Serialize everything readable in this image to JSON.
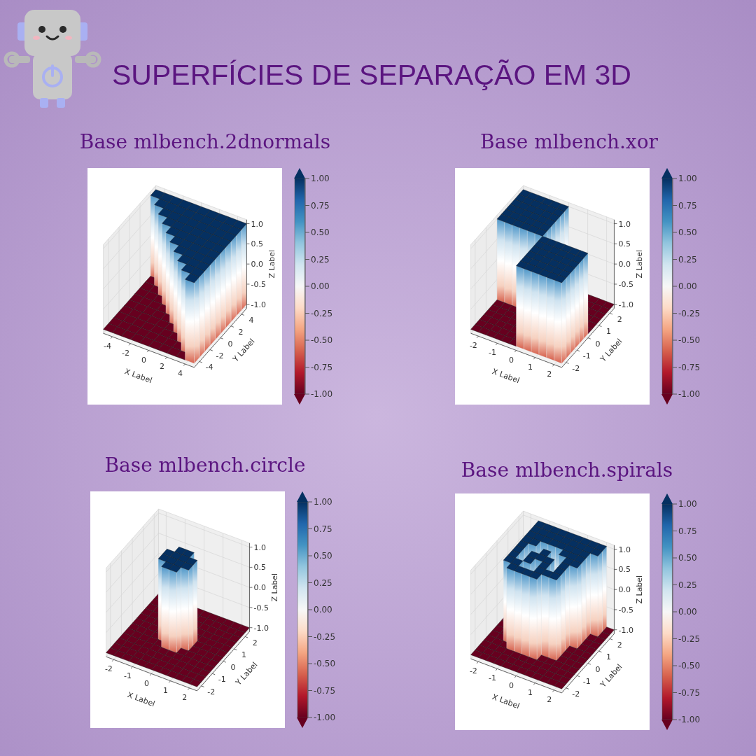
{
  "title": "SUPERFÍCIES DE SEPARAÇÃO EM 3D",
  "chart_data": [
    {
      "type": "surface",
      "title": "Base mlbench.2dnormals",
      "x_label": "X Label",
      "y_label": "Y Label",
      "z_label": "Z Label",
      "grid": true,
      "x": [
        -4.5,
        -3.5,
        -2.5,
        -1.5,
        -0.5,
        0.5,
        1.5,
        2.5,
        3.5,
        4.5
      ],
      "y": [
        -4.5,
        -3.5,
        -2.5,
        -1.5,
        -0.5,
        0.5,
        1.5,
        2.5,
        3.5,
        4.5
      ],
      "z": [
        [
          -1,
          -1,
          -1,
          -1,
          -1,
          -1,
          -1,
          -1,
          -1,
          1
        ],
        [
          -1,
          -1,
          -1,
          -1,
          -1,
          -1,
          -1,
          -1,
          1,
          1
        ],
        [
          -1,
          -1,
          -1,
          -1,
          -1,
          -1,
          -1,
          1,
          1,
          1
        ],
        [
          -1,
          -1,
          -1,
          -1,
          -1,
          -1,
          1,
          1,
          1,
          1
        ],
        [
          -1,
          -1,
          -1,
          -1,
          -1,
          1,
          1,
          1,
          1,
          1
        ],
        [
          -1,
          -1,
          -1,
          -1,
          1,
          1,
          1,
          1,
          1,
          1
        ],
        [
          -1,
          -1,
          -1,
          1,
          1,
          1,
          1,
          1,
          1,
          1
        ],
        [
          -1,
          -1,
          1,
          1,
          1,
          1,
          1,
          1,
          1,
          1
        ],
        [
          -1,
          1,
          1,
          1,
          1,
          1,
          1,
          1,
          1,
          1
        ],
        [
          1,
          1,
          1,
          1,
          1,
          1,
          1,
          1,
          1,
          1
        ]
      ],
      "xlim": [
        -5,
        5
      ],
      "xticks": [
        -4,
        -2,
        0,
        2,
        4
      ],
      "ylim": [
        -5,
        5
      ],
      "yticks": [
        -4,
        -2,
        0,
        2,
        4
      ],
      "zlim": [
        -1.1,
        1.1
      ],
      "zticks": [
        {
          "value": -1,
          "label": "-1.0"
        },
        {
          "value": -0.5,
          "label": "-0.5"
        },
        {
          "value": 0,
          "label": "0.0"
        },
        {
          "value": 0.5,
          "label": "0.5"
        },
        {
          "value": 1,
          "label": "1.0"
        }
      ],
      "colorbar": {
        "range": [
          -1,
          1
        ],
        "ticks": [
          {
            "value": -1,
            "label": "-1.00"
          },
          {
            "value": -0.75,
            "label": "-0.75"
          },
          {
            "value": -0.5,
            "label": "-0.50"
          },
          {
            "value": -0.25,
            "label": "-0.25"
          },
          {
            "value": 0,
            "label": "0.00"
          },
          {
            "value": 0.25,
            "label": "0.25"
          },
          {
            "value": 0.5,
            "label": "0.50"
          },
          {
            "value": 0.75,
            "label": "0.75"
          },
          {
            "value": 1,
            "label": "1.00"
          }
        ]
      }
    },
    {
      "type": "surface",
      "title": "Base mlbench.xor",
      "x_label": "X Label",
      "y_label": "Y Label",
      "z_label": "Z Label",
      "grid": true,
      "x": [
        -2.2,
        -1.8,
        -1.4,
        -1,
        -0.6,
        -0.2,
        0.2,
        0.6,
        1,
        1.4,
        1.8,
        2.2
      ],
      "y": [
        -2.2,
        -1.8,
        -1.4,
        -1,
        -0.6,
        -0.2,
        0.2,
        0.6,
        1,
        1.4,
        1.8,
        2.2
      ],
      "z": [
        [
          -1,
          -1,
          -1,
          -1,
          -1,
          -1,
          1,
          1,
          1,
          1,
          1,
          1
        ],
        [
          -1,
          -1,
          -1,
          -1,
          -1,
          -1,
          1,
          1,
          1,
          1,
          1,
          1
        ],
        [
          -1,
          -1,
          -1,
          -1,
          -1,
          -1,
          1,
          1,
          1,
          1,
          1,
          1
        ],
        [
          -1,
          -1,
          -1,
          -1,
          -1,
          -1,
          1,
          1,
          1,
          1,
          1,
          1
        ],
        [
          -1,
          -1,
          -1,
          -1,
          -1,
          -1,
          1,
          1,
          1,
          1,
          1,
          1
        ],
        [
          -1,
          -1,
          -1,
          -1,
          -1,
          -1,
          1,
          1,
          1,
          1,
          1,
          1
        ],
        [
          1,
          1,
          1,
          1,
          1,
          1,
          -1,
          -1,
          -1,
          -1,
          -1,
          -1
        ],
        [
          1,
          1,
          1,
          1,
          1,
          1,
          -1,
          -1,
          -1,
          -1,
          -1,
          -1
        ],
        [
          1,
          1,
          1,
          1,
          1,
          1,
          -1,
          -1,
          -1,
          -1,
          -1,
          -1
        ],
        [
          1,
          1,
          1,
          1,
          1,
          1,
          -1,
          -1,
          -1,
          -1,
          -1,
          -1
        ],
        [
          1,
          1,
          1,
          1,
          1,
          1,
          -1,
          -1,
          -1,
          -1,
          -1,
          -1
        ],
        [
          1,
          1,
          1,
          1,
          1,
          1,
          -1,
          -1,
          -1,
          -1,
          -1,
          -1
        ]
      ],
      "xlim": [
        -2.4,
        2.4
      ],
      "xticks": [
        -2,
        -1,
        0,
        1,
        2
      ],
      "ylim": [
        -2.4,
        2.4
      ],
      "yticks": [
        -2,
        -1,
        0,
        1,
        2
      ],
      "zlim": [
        -1.1,
        1.1
      ],
      "zticks": [
        {
          "value": -1,
          "label": "-1.0"
        },
        {
          "value": -0.5,
          "label": "-0.5"
        },
        {
          "value": 0,
          "label": "0.0"
        },
        {
          "value": 0.5,
          "label": "0.5"
        },
        {
          "value": 1,
          "label": "1.0"
        }
      ],
      "colorbar": {
        "range": [
          -1,
          1
        ],
        "ticks": [
          {
            "value": -1,
            "label": "-1.00"
          },
          {
            "value": -0.75,
            "label": "-0.75"
          },
          {
            "value": -0.5,
            "label": "-0.50"
          },
          {
            "value": -0.25,
            "label": "-0.25"
          },
          {
            "value": 0,
            "label": "0.00"
          },
          {
            "value": 0.25,
            "label": "0.25"
          },
          {
            "value": 0.5,
            "label": "0.50"
          },
          {
            "value": 0.75,
            "label": "0.75"
          },
          {
            "value": 1,
            "label": "1.00"
          }
        ]
      }
    },
    {
      "type": "surface",
      "title": "Base mlbench.circle",
      "x_label": "X Label",
      "y_label": "Y Label",
      "z_label": "Z Label",
      "grid": true,
      "x": [
        -2.2,
        -1.8,
        -1.4,
        -1,
        -0.6,
        -0.2,
        0.2,
        0.6,
        1,
        1.4,
        1.8,
        2.2
      ],
      "y": [
        -2.2,
        -1.8,
        -1.4,
        -1,
        -0.6,
        -0.2,
        0.2,
        0.6,
        1,
        1.4,
        1.8,
        2.2
      ],
      "z": [
        [
          -1,
          -1,
          -1,
          -1,
          -1,
          -1,
          -1,
          -1,
          -1,
          -1,
          -1,
          -1
        ],
        [
          -1,
          -1,
          -1,
          -1,
          -1,
          -1,
          -1,
          -1,
          -1,
          -1,
          -1,
          -1
        ],
        [
          -1,
          -1,
          -1,
          -1,
          -1,
          -1,
          -1,
          -1,
          -1,
          -1,
          -1,
          -1
        ],
        [
          -1,
          -1,
          -1,
          -1,
          -1,
          -1,
          -1,
          -1,
          -1,
          -1,
          -1,
          -1
        ],
        [
          -1,
          -1,
          -1,
          -1,
          -1,
          1,
          1,
          -1,
          -1,
          -1,
          -1,
          -1
        ],
        [
          -1,
          -1,
          -1,
          -1,
          1,
          1,
          1,
          1,
          -1,
          -1,
          -1,
          -1
        ],
        [
          -1,
          -1,
          -1,
          -1,
          1,
          1,
          1,
          1,
          -1,
          -1,
          -1,
          -1
        ],
        [
          -1,
          -1,
          -1,
          -1,
          -1,
          1,
          1,
          -1,
          -1,
          -1,
          -1,
          -1
        ],
        [
          -1,
          -1,
          -1,
          -1,
          -1,
          -1,
          -1,
          -1,
          -1,
          -1,
          -1,
          -1
        ],
        [
          -1,
          -1,
          -1,
          -1,
          -1,
          -1,
          -1,
          -1,
          -1,
          -1,
          -1,
          -1
        ],
        [
          -1,
          -1,
          -1,
          -1,
          -1,
          -1,
          -1,
          -1,
          -1,
          -1,
          -1,
          -1
        ],
        [
          -1,
          -1,
          -1,
          -1,
          -1,
          -1,
          -1,
          -1,
          -1,
          -1,
          -1,
          -1
        ]
      ],
      "xlim": [
        -2.4,
        2.4
      ],
      "xticks": [
        -2,
        -1,
        0,
        1,
        2
      ],
      "ylim": [
        -2.4,
        2.4
      ],
      "yticks": [
        -2,
        -1,
        0,
        1,
        2
      ],
      "zlim": [
        -1.1,
        1.1
      ],
      "zticks": [
        {
          "value": -1,
          "label": "-1.0"
        },
        {
          "value": -0.5,
          "label": "-0.5"
        },
        {
          "value": 0,
          "label": "0.0"
        },
        {
          "value": 0.5,
          "label": "0.5"
        },
        {
          "value": 1,
          "label": "1.0"
        }
      ],
      "colorbar": {
        "range": [
          -1,
          1
        ],
        "ticks": [
          {
            "value": -1,
            "label": "-1.00"
          },
          {
            "value": -0.75,
            "label": "-0.75"
          },
          {
            "value": -0.5,
            "label": "-0.50"
          },
          {
            "value": -0.25,
            "label": "-0.25"
          },
          {
            "value": 0,
            "label": "0.00"
          },
          {
            "value": 0.25,
            "label": "0.25"
          },
          {
            "value": 0.5,
            "label": "0.50"
          },
          {
            "value": 0.75,
            "label": "0.75"
          },
          {
            "value": 1,
            "label": "1.00"
          }
        ]
      }
    },
    {
      "type": "surface",
      "title": "Base mlbench.spirals",
      "x_label": "X Label",
      "y_label": "Y Label",
      "z_label": "Z Label",
      "grid": true,
      "x": [
        -2.2,
        -1.8,
        -1.4,
        -1,
        -0.6,
        -0.2,
        0.2,
        0.6,
        1,
        1.4,
        1.8,
        2.2
      ],
      "y": [
        -2.2,
        -1.8,
        -1.4,
        -1,
        -0.6,
        -0.2,
        0.2,
        0.6,
        1,
        1.4,
        1.8,
        2.2
      ],
      "z": [
        [
          -1,
          -1,
          -1,
          -1,
          -1,
          -1,
          -1,
          -1,
          -1,
          -1,
          -1,
          -1
        ],
        [
          -1,
          -1,
          -1,
          -1,
          -1,
          -1,
          -1,
          -1,
          -1,
          -1,
          -1,
          -1
        ],
        [
          -1,
          -1,
          -1,
          -1,
          -1,
          -1,
          -1,
          -1,
          -1,
          -1,
          -1,
          -1
        ],
        [
          -1,
          -1,
          -1,
          1,
          1,
          1,
          1,
          -1,
          -1,
          -1,
          -1,
          -1
        ],
        [
          -1,
          -1,
          1,
          1,
          -1,
          -1,
          1,
          1,
          1,
          -1,
          -1,
          -1
        ],
        [
          -1,
          -1,
          1,
          -1,
          1,
          -1,
          1,
          -1,
          1,
          -1,
          -1,
          -1
        ],
        [
          -1,
          -1,
          1,
          -1,
          1,
          1,
          1,
          -1,
          1,
          -1,
          -1,
          -1
        ],
        [
          -1,
          -1,
          1,
          -1,
          -1,
          1,
          -1,
          -1,
          1,
          1,
          -1,
          -1
        ],
        [
          -1,
          -1,
          1,
          1,
          -1,
          -1,
          -1,
          1,
          1,
          1,
          -1,
          -1
        ],
        [
          -1,
          -1,
          1,
          1,
          1,
          1,
          1,
          1,
          1,
          1,
          -1,
          -1
        ],
        [
          -1,
          -1,
          1,
          1,
          1,
          1,
          1,
          1,
          1,
          1,
          1,
          -1
        ],
        [
          -1,
          -1,
          1,
          1,
          1,
          1,
          1,
          1,
          1,
          1,
          1,
          -1
        ]
      ],
      "xlim": [
        -2.4,
        2.4
      ],
      "xticks": [
        -2,
        -1,
        0,
        1,
        2
      ],
      "ylim": [
        -2.4,
        2.4
      ],
      "yticks": [
        -2,
        -1,
        0,
        1,
        2
      ],
      "zlim": [
        -1.1,
        1.1
      ],
      "zticks": [
        {
          "value": -1,
          "label": "-1.0"
        },
        {
          "value": -0.5,
          "label": "-0.5"
        },
        {
          "value": 0,
          "label": "0.0"
        },
        {
          "value": 0.5,
          "label": "0.5"
        },
        {
          "value": 1,
          "label": "1.0"
        }
      ],
      "colorbar": {
        "range": [
          -1,
          1
        ],
        "ticks": [
          {
            "value": -1,
            "label": "-1.00"
          },
          {
            "value": -0.75,
            "label": "-0.75"
          },
          {
            "value": -0.5,
            "label": "-0.50"
          },
          {
            "value": -0.25,
            "label": "-0.25"
          },
          {
            "value": 0,
            "label": "0.00"
          },
          {
            "value": 0.25,
            "label": "0.25"
          },
          {
            "value": 0.5,
            "label": "0.50"
          },
          {
            "value": 0.75,
            "label": "0.75"
          },
          {
            "value": 1,
            "label": "1.00"
          }
        ]
      }
    }
  ]
}
